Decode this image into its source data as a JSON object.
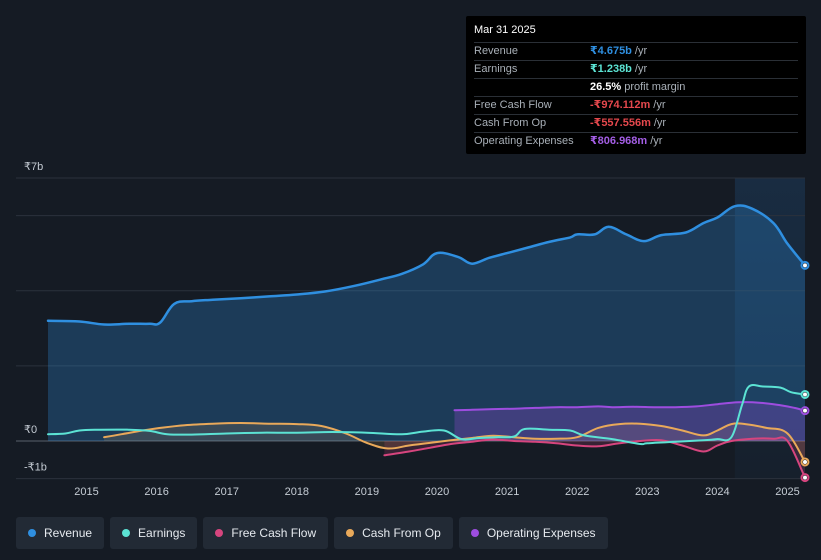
{
  "colors": {
    "revenue": "#2f8fe0",
    "earnings": "#5ce3d4",
    "fcf": "#d6457e",
    "cfo": "#e9a95a",
    "opex": "#9d4ddf",
    "grid": "#2b323c",
    "axis_text": "#c5ccd4"
  },
  "tooltip": {
    "date": "Mar 31 2025",
    "rows": [
      {
        "label": "Revenue",
        "value": "₹4.675b",
        "unit": "/yr",
        "color": "#2f8fe0"
      },
      {
        "label": "Earnings",
        "value": "₹1.238b",
        "unit": "/yr",
        "color": "#5ce3d4"
      },
      {
        "label": "",
        "value": "26.5%",
        "unit": "profit margin",
        "color": "#ffffff"
      },
      {
        "label": "Free Cash Flow",
        "value": "-₹974.112m",
        "unit": "/yr",
        "color": "#e5484d"
      },
      {
        "label": "Cash From Op",
        "value": "-₹557.556m",
        "unit": "/yr",
        "color": "#e5484d"
      },
      {
        "label": "Operating Expenses",
        "value": "₹806.968m",
        "unit": "/yr",
        "color": "#a45ee5"
      }
    ]
  },
  "legend": [
    {
      "label": "Revenue",
      "color": "#2f8fe0"
    },
    {
      "label": "Earnings",
      "color": "#5ce3d4"
    },
    {
      "label": "Free Cash Flow",
      "color": "#d6457e"
    },
    {
      "label": "Cash From Op",
      "color": "#e9a95a"
    },
    {
      "label": "Operating Expenses",
      "color": "#9d4ddf"
    }
  ],
  "chart_data": {
    "type": "area",
    "title": "",
    "xlabel": "",
    "ylabel": "",
    "unit": "INR billions",
    "ylim": [
      -1,
      7
    ],
    "y_tick_labels": [
      {
        "value": 7,
        "label": "₹7b"
      },
      {
        "value": 0,
        "label": "₹0"
      },
      {
        "value": -1,
        "label": "-₹1b"
      }
    ],
    "x_tick_labels": [
      "2015",
      "2016",
      "2017",
      "2018",
      "2019",
      "2020",
      "2021",
      "2022",
      "2023",
      "2024",
      "2025"
    ],
    "x_tick_values": [
      2015,
      2016,
      2017,
      2018,
      2019,
      2020,
      2021,
      2022,
      2023,
      2024,
      2025
    ],
    "xlim": [
      2014.0,
      2025.25
    ],
    "highlight_from": 2024.25,
    "series": [
      {
        "name": "Revenue",
        "key": "revenue",
        "fill": true,
        "x": [
          2014.45,
          2014.9,
          2015.25,
          2015.6,
          2015.9,
          2016.05,
          2016.25,
          2016.5,
          2016.8,
          2017.2,
          2017.6,
          2018.0,
          2018.4,
          2018.8,
          2019.2,
          2019.5,
          2019.8,
          2020.0,
          2020.3,
          2020.5,
          2020.75,
          2021.0,
          2021.3,
          2021.6,
          2021.9,
          2022.0,
          2022.25,
          2022.45,
          2022.7,
          2022.95,
          2023.2,
          2023.55,
          2023.8,
          2024.0,
          2024.25,
          2024.5,
          2024.8,
          2025.0,
          2025.25
        ],
        "y": [
          3.2,
          3.18,
          3.1,
          3.12,
          3.12,
          3.15,
          3.65,
          3.72,
          3.76,
          3.8,
          3.85,
          3.9,
          3.98,
          4.12,
          4.3,
          4.45,
          4.7,
          5.0,
          4.9,
          4.72,
          4.88,
          5.0,
          5.15,
          5.3,
          5.42,
          5.5,
          5.5,
          5.7,
          5.5,
          5.32,
          5.48,
          5.55,
          5.8,
          5.95,
          6.25,
          6.18,
          5.8,
          5.25,
          4.675
        ]
      },
      {
        "name": "Earnings",
        "key": "earnings",
        "fill": false,
        "x": [
          2014.45,
          2014.7,
          2014.9,
          2015.2,
          2015.6,
          2015.9,
          2016.15,
          2016.5,
          2017.0,
          2017.5,
          2018.0,
          2018.5,
          2019.0,
          2019.5,
          2019.8,
          2020.1,
          2020.35,
          2020.6,
          2020.85,
          2021.1,
          2021.25,
          2021.6,
          2021.9,
          2022.1,
          2022.5,
          2022.9,
          2023.0,
          2023.4,
          2023.8,
          2024.0,
          2024.2,
          2024.35,
          2024.45,
          2024.65,
          2024.9,
          2025.05,
          2025.25
        ],
        "y": [
          0.18,
          0.2,
          0.28,
          0.3,
          0.3,
          0.27,
          0.18,
          0.17,
          0.2,
          0.22,
          0.22,
          0.24,
          0.22,
          0.18,
          0.25,
          0.28,
          0.05,
          0.08,
          0.1,
          0.12,
          0.32,
          0.3,
          0.28,
          0.15,
          0.05,
          -0.08,
          -0.06,
          -0.02,
          0.02,
          0.05,
          0.1,
          0.95,
          1.45,
          1.45,
          1.42,
          1.3,
          1.238
        ]
      },
      {
        "name": "Free Cash Flow",
        "key": "fcf",
        "fill": true,
        "x": [
          2019.25,
          2019.6,
          2019.9,
          2020.2,
          2020.5,
          2020.8,
          2021.1,
          2021.4,
          2021.7,
          2022.0,
          2022.3,
          2022.6,
          2022.9,
          2023.2,
          2023.5,
          2023.8,
          2024.0,
          2024.2,
          2024.5,
          2024.8,
          2025.0,
          2025.25
        ],
        "y": [
          -0.38,
          -0.28,
          -0.18,
          -0.08,
          -0.02,
          0.04,
          0.0,
          -0.02,
          -0.06,
          -0.12,
          -0.14,
          -0.06,
          0.0,
          0.02,
          -0.12,
          -0.28,
          -0.12,
          0.0,
          0.06,
          0.06,
          0.0,
          -0.974
        ]
      },
      {
        "name": "Cash From Op",
        "key": "cfo",
        "fill": true,
        "x": [
          2015.25,
          2015.5,
          2015.8,
          2016.1,
          2016.4,
          2016.8,
          2017.2,
          2017.6,
          2018.0,
          2018.35,
          2018.7,
          2019.0,
          2019.3,
          2019.6,
          2019.9,
          2020.2,
          2020.5,
          2020.8,
          2021.1,
          2021.4,
          2021.7,
          2022.0,
          2022.3,
          2022.6,
          2022.9,
          2023.2,
          2023.5,
          2023.8,
          2024.0,
          2024.2,
          2024.4,
          2024.7,
          2025.0,
          2025.25
        ],
        "y": [
          0.1,
          0.18,
          0.28,
          0.36,
          0.42,
          0.46,
          0.48,
          0.46,
          0.45,
          0.4,
          0.2,
          -0.05,
          -0.2,
          -0.12,
          -0.05,
          0.02,
          0.08,
          0.14,
          0.1,
          0.06,
          0.06,
          0.1,
          0.35,
          0.45,
          0.46,
          0.4,
          0.28,
          0.15,
          0.28,
          0.45,
          0.45,
          0.35,
          0.2,
          -0.558
        ]
      },
      {
        "name": "Operating Expenses",
        "key": "opex",
        "fill": true,
        "x": [
          2020.25,
          2020.5,
          2020.8,
          2021.1,
          2021.4,
          2021.7,
          2022.0,
          2022.3,
          2022.5,
          2022.8,
          2023.1,
          2023.4,
          2023.7,
          2024.0,
          2024.3,
          2024.6,
          2024.9,
          2025.1,
          2025.25
        ],
        "y": [
          0.82,
          0.83,
          0.85,
          0.86,
          0.88,
          0.9,
          0.9,
          0.92,
          0.9,
          0.91,
          0.9,
          0.9,
          0.92,
          0.98,
          1.03,
          1.02,
          0.95,
          0.88,
          0.807
        ]
      }
    ]
  }
}
